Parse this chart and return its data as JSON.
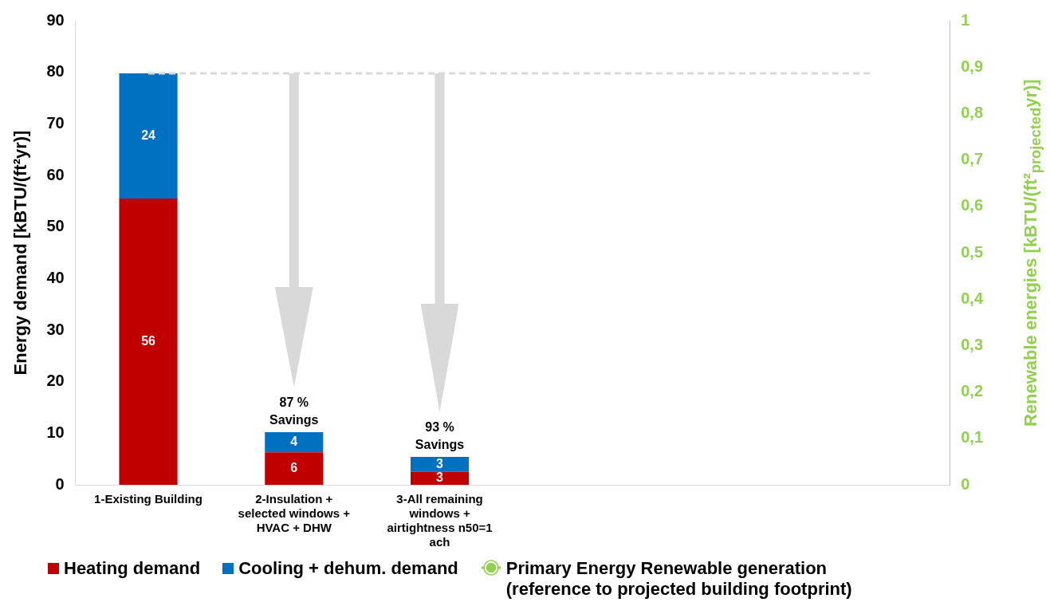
{
  "chart_data": {
    "type": "bar",
    "stacked": true,
    "grid": false,
    "legend": "bottom",
    "categories": [
      "1-Existing Building",
      "2-Insulation + selected windows + HVAC + DHW",
      "3-All remaining windows + airtightness n50=1 ach",
      null,
      null,
      null
    ],
    "series": [
      {
        "name": "Heating demand",
        "color": "#c00000",
        "values": [
          55.5,
          6.3,
          2.5,
          null,
          null,
          null
        ],
        "value_labels": [
          "56",
          "6",
          "3",
          null,
          null,
          null
        ]
      },
      {
        "name": "Cooling + dehum. demand",
        "color": "#0070c0",
        "values": [
          24.3,
          3.9,
          2.9,
          null,
          null,
          null
        ],
        "value_labels": [
          "24",
          "4",
          "3",
          null,
          null,
          null
        ]
      },
      {
        "name": "Primary Energy Renewable generation (reference to projected building footprint)",
        "type": "line",
        "axis": "y2",
        "marker": "circle",
        "color": "#92d050",
        "values": [
          null,
          null,
          null,
          null,
          null,
          null
        ]
      }
    ],
    "ylabel": "Energy demand [kBTU/(ft²yr)]",
    "y2label": "Renewable energies [kBTU/(ft²$_{projected}$yr)]",
    "ylim": [
      0,
      90
    ],
    "yticks": [
      0,
      10,
      20,
      30,
      40,
      50,
      60,
      70,
      80,
      90
    ],
    "y2lim": [
      0,
      1
    ],
    "y2ticks": [
      0,
      {
        "value": 0.1,
        "label": "0,1"
      },
      {
        "value": 0.2,
        "label": "0,2"
      },
      {
        "value": 0.3,
        "label": "0,3"
      },
      {
        "value": 0.4,
        "label": "0,4"
      },
      {
        "value": 0.5,
        "label": "0,5"
      },
      {
        "value": 0.6,
        "label": "0,6"
      },
      {
        "value": 0.7,
        "label": "0,7"
      },
      {
        "value": 0.8,
        "label": "0,8"
      },
      {
        "value": 0.9,
        "label": "0,9"
      },
      1
    ],
    "ref_lines": [
      {
        "axis": "y",
        "value": 79.8,
        "color": "#d9d9d9",
        "line_style": "dashed"
      }
    ],
    "annotations": [
      {
        "text": "87 % Savings",
        "x": "2-Insulation + selected windows + HVAC + DHW",
        "y": 10.2
      },
      {
        "text": "93 % Savings",
        "x": "3-All remaining windows + airtightness n50=1 ach",
        "y": 5.4
      }
    ]
  }
}
